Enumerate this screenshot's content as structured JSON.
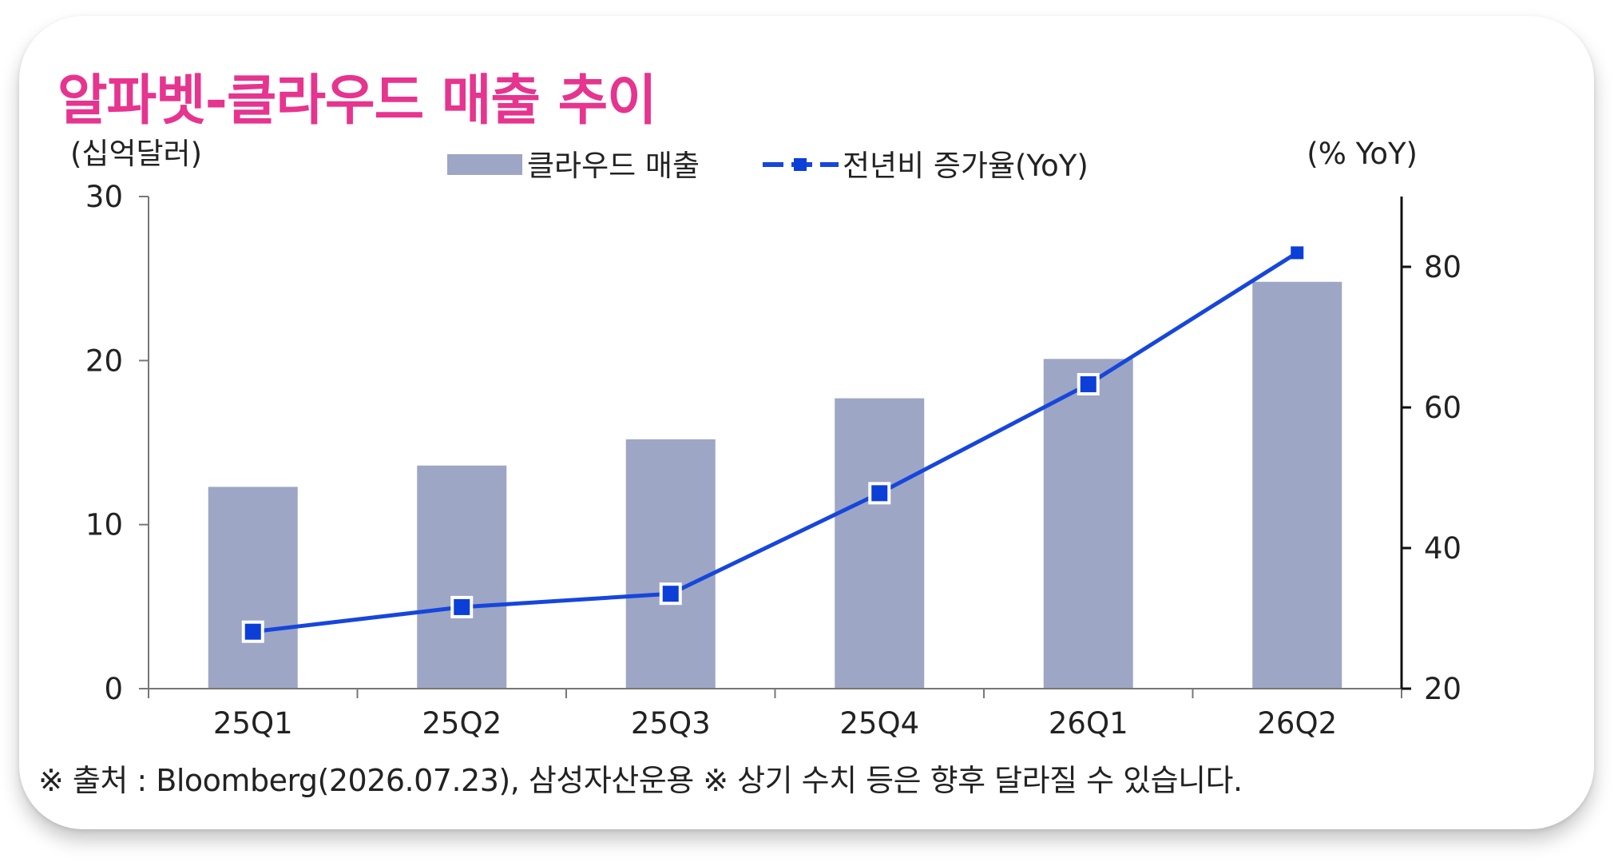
{
  "title": "알파벳-클라우드 매출 추이",
  "source": "※ 출처 : Bloomberg(2026.07.23), 삼성자산운용 ※ 상기 수치 등은 향후 달라질 수 있습니다.",
  "colors": {
    "title": "#e6348f",
    "bar": "#9ea6c5",
    "line": "#1646dc",
    "marker_fill": "#0b3fd8",
    "axis": "#222222"
  },
  "chart_data": {
    "type": "bar",
    "categories": [
      "25Q1",
      "25Q2",
      "25Q3",
      "25Q4",
      "26Q1",
      "26Q2"
    ],
    "left_axis_unit": "(십억달러)",
    "right_axis_unit": "(% YoY)",
    "ylim": [
      0,
      30
    ],
    "yticks": [
      0,
      10,
      20,
      30
    ],
    "y2lim": [
      20,
      90
    ],
    "y2ticks": [
      20,
      40,
      60,
      80
    ],
    "legend_position": "top-center",
    "grid": false,
    "series": [
      {
        "name": "클라우드 매출",
        "type": "bar",
        "axis": "left",
        "values": [
          12.3,
          13.6,
          15.2,
          17.7,
          20.1,
          24.8
        ]
      },
      {
        "name": "전년비 증가율(YoY)",
        "type": "line",
        "axis": "right",
        "values": [
          28.1,
          31.6,
          33.5,
          47.8,
          63.3,
          82.0
        ]
      }
    ]
  }
}
